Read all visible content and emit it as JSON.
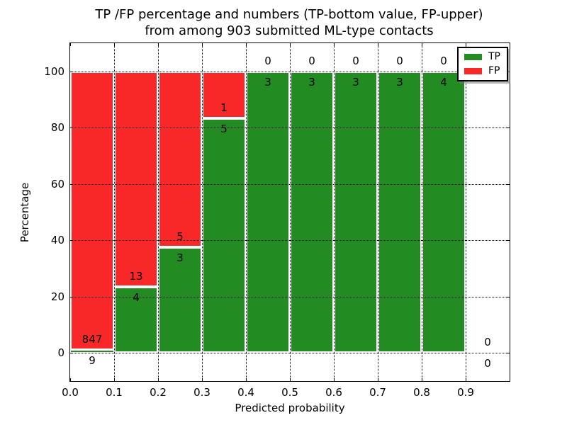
{
  "chart_data": {
    "type": "bar",
    "stacked": true,
    "title_line1": "TP /FP percentage and numbers (TP-bottom value, FP-upper)",
    "title_line2": "from among 903 submitted ML-type contacts",
    "xlabel": "Predicted probability",
    "ylabel": "Percentage",
    "total_contacts": 903,
    "xlim": [
      0.0,
      1.0
    ],
    "ylim": [
      -10,
      110
    ],
    "grid": "dotted",
    "legend_position": "upper right",
    "x_tick_labels": [
      "0.0",
      "0.1",
      "0.2",
      "0.3",
      "0.4",
      "0.5",
      "0.6",
      "0.7",
      "0.8",
      "0.9"
    ],
    "x_tick_values": [
      0.0,
      0.1,
      0.2,
      0.3,
      0.4,
      0.5,
      0.6,
      0.7,
      0.8,
      0.9
    ],
    "y_tick_labels": [
      "0",
      "20",
      "40",
      "60",
      "80",
      "100"
    ],
    "y_tick_values": [
      0,
      20,
      40,
      60,
      80,
      100
    ],
    "categories": [
      "0.0-0.1",
      "0.1-0.2",
      "0.2-0.3",
      "0.3-0.4",
      "0.4-0.5",
      "0.5-0.6",
      "0.6-0.7",
      "0.7-0.8",
      "0.8-0.9",
      "0.9-1.0"
    ],
    "series": [
      {
        "name": "TP",
        "color": "#228b22",
        "values": [
          9,
          4,
          3,
          5,
          3,
          3,
          3,
          3,
          4,
          0
        ]
      },
      {
        "name": "FP",
        "color": "#f92828",
        "values": [
          847,
          13,
          5,
          1,
          0,
          0,
          0,
          0,
          0,
          0
        ]
      }
    ],
    "tp_percent": [
      1.05,
      23.53,
      37.5,
      83.33,
      100,
      100,
      100,
      100,
      100,
      0
    ],
    "legend": {
      "entries": [
        {
          "label": "TP",
          "color": "#228b22"
        },
        {
          "label": "FP",
          "color": "#f92828"
        }
      ]
    }
  }
}
